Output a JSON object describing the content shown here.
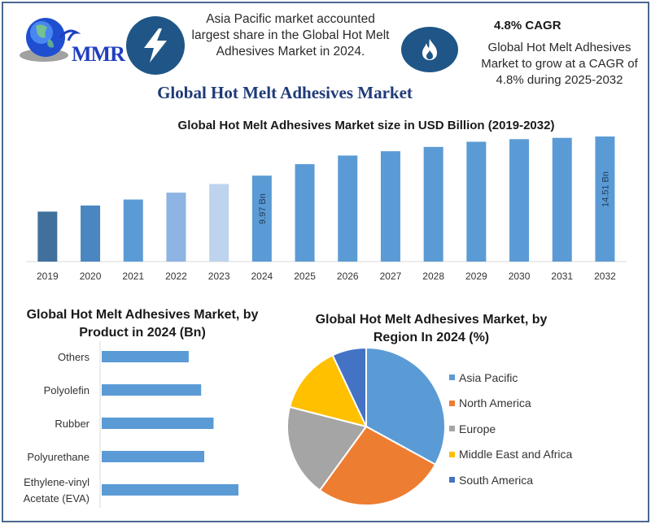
{
  "header": {
    "logo_text": "MMR",
    "info_left": "Asia Pacific market accounted largest share in the Global Hot Melt Adhesives Market in 2024.",
    "cagr_title": "4.8% CAGR",
    "info_right": "Global Hot Melt Adhesives Market to grow at a CAGR of 4.8% during 2025-2032",
    "icons": [
      "lightning-bolt-icon",
      "flame-icon",
      "globe-logo-icon"
    ]
  },
  "main_title": "Global Hot Melt Adhesives Market",
  "colors": {
    "bar_blue": "#5b9bd5",
    "header_blue": "#1f5687",
    "title_navy": "#1f3a78",
    "frame": "#4a6890"
  },
  "chart_data": [
    {
      "type": "bar",
      "title": "Global Hot Melt Adhesives Market size in USD Billion (2019-2032)",
      "xlabel": "",
      "ylabel": "",
      "categories": [
        "2019",
        "2020",
        "2021",
        "2022",
        "2023",
        "2024",
        "2025",
        "2026",
        "2027",
        "2028",
        "2029",
        "2030",
        "2031",
        "2032"
      ],
      "values": [
        5.8,
        6.5,
        7.2,
        8.0,
        9.0,
        9.97,
        11.3,
        12.3,
        12.8,
        13.3,
        13.9,
        14.2,
        14.35,
        14.51
      ],
      "bar_colors": [
        "#41709c",
        "#4a86c0",
        "#5b9bd5",
        "#8db4e2",
        "#bed3ee",
        "#5b9bd5",
        "#5b9bd5",
        "#5b9bd5",
        "#5b9bd5",
        "#5b9bd5",
        "#5b9bd5",
        "#5b9bd5",
        "#5b9bd5",
        "#5b9bd5"
      ],
      "data_labels": [
        {
          "category": "2024",
          "text": "9.97 Bn"
        },
        {
          "category": "2032",
          "text": "14.51 Bn"
        }
      ],
      "grid": false,
      "legend": "none"
    },
    {
      "type": "bar",
      "orientation": "horizontal",
      "title": "Global Hot Melt Adhesives Market, by Product in 2024 (Bn)",
      "categories": [
        "Others",
        "Polyolefin",
        "Rubber",
        "Polyurethane",
        "Ethylene-vinyl Acetate (EVA)"
      ],
      "category_lines": [
        [
          "Others"
        ],
        [
          "Polyolefin"
        ],
        [
          "Rubber"
        ],
        [
          "Polyurethane"
        ],
        [
          "Ethylene-vinyl",
          "Acetate (EVA)"
        ]
      ],
      "values": [
        1.4,
        1.6,
        1.8,
        1.65,
        2.2
      ],
      "grid": false,
      "legend": "none"
    },
    {
      "type": "pie",
      "title": "Global Hot Melt Adhesives Market, by Region In 2024 (%)",
      "categories": [
        "Asia Pacific",
        "North America",
        "Europe",
        "Middle East and Africa",
        "South America"
      ],
      "values": [
        33,
        27,
        19,
        14,
        7
      ],
      "colors": [
        "#5b9bd5",
        "#ed7d31",
        "#a5a5a5",
        "#ffc000",
        "#4472c4"
      ],
      "legend_position": "right"
    }
  ]
}
